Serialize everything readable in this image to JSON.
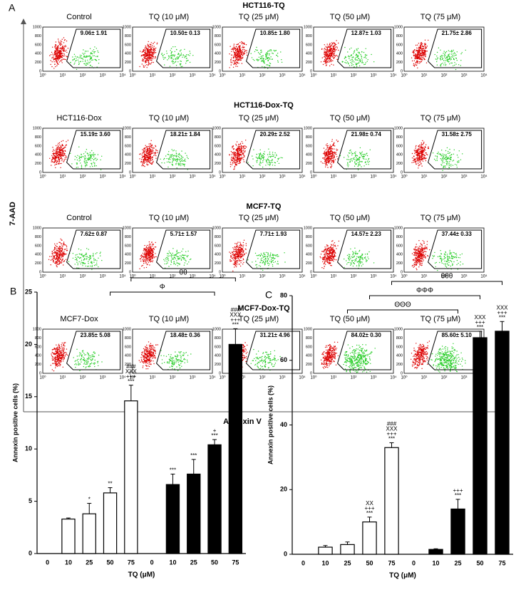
{
  "panel_label": "A",
  "flow": {
    "x_label": "Annexin V",
    "y_label": "7-AAD",
    "xtick_labels": [
      "10⁰",
      "10¹",
      "10²",
      "10³",
      "10⁴"
    ],
    "ytick_labels": [
      0,
      200,
      400,
      600,
      800,
      1000
    ],
    "groups": [
      {
        "title": "HCT116-TQ",
        "panels": [
          {
            "label": "Control",
            "value_label": "9.06± 1.91"
          },
          {
            "label": "TQ (10 μM)",
            "value_label": "10.50± 0.13"
          },
          {
            "label": "TQ (25 μM)",
            "value_label": "10.85± 1.80"
          },
          {
            "label": "TQ (50 μM)",
            "value_label": "12.87± 1.03"
          },
          {
            "label": "TQ (75 μM)",
            "value_label": "21.75± 2.86"
          }
        ]
      },
      {
        "title": "HCT116-Dox-TQ",
        "panels": [
          {
            "label": "HCT116-Dox",
            "value_label": "15.19± 3.60"
          },
          {
            "label": "TQ (10 μM)",
            "value_label": "18.21± 1.84"
          },
          {
            "label": "TQ (25 μM)",
            "value_label": "20.29± 2.52"
          },
          {
            "label": "TQ (50 μM)",
            "value_label": "21.98± 0.74"
          },
          {
            "label": "TQ (75 μM)",
            "value_label": "31.58± 2.75"
          }
        ]
      },
      {
        "title": "MCF7-TQ",
        "panels": [
          {
            "label": "Control",
            "value_label": "7.62± 0.87"
          },
          {
            "label": "TQ (10 μM)",
            "value_label": "5.71± 1.57"
          },
          {
            "label": "TQ (25 μM)",
            "value_label": "7.71± 1.93"
          },
          {
            "label": "TQ (50 μM)",
            "value_label": "14.57± 2.23"
          },
          {
            "label": "TQ (75 μM)",
            "value_label": "37.44± 0.33"
          }
        ]
      },
      {
        "title": "MCF7-Dox-TQ",
        "panels": [
          {
            "label": "MCF7-Dox",
            "value_label": "23.85± 5.08"
          },
          {
            "label": "TQ (10 μM)",
            "value_label": "18.48± 0.36"
          },
          {
            "label": "TQ (25 μM)",
            "value_label": "31.21± 4.96"
          },
          {
            "label": "TQ (50 μM)",
            "value_label": "84.02± 0.30"
          },
          {
            "label": "TQ (75 μM)",
            "value_label": "85.60± 5.10"
          }
        ]
      }
    ]
  },
  "chart_data": [
    {
      "type": "bar",
      "panel_label": "B",
      "y_label": "Annexin positive cells (%)",
      "x_label": "TQ (μM)",
      "categories": [
        "0",
        "10",
        "25",
        "50",
        "75",
        "0",
        "10",
        "25",
        "50",
        "75"
      ],
      "values": [
        0,
        3.3,
        3.8,
        5.8,
        14.6,
        0,
        6.6,
        7.6,
        10.4,
        20
      ],
      "errors": [
        0,
        0.1,
        1,
        0.5,
        1.5,
        0,
        1,
        1.4,
        0.5,
        1.5
      ],
      "colors": [
        "#ffffff",
        "#ffffff",
        "#ffffff",
        "#ffffff",
        "#ffffff",
        "#000000",
        "#000000",
        "#000000",
        "#000000",
        "#000000"
      ],
      "bar_annotations": [
        [],
        [],
        [
          "*"
        ],
        [
          "**"
        ],
        [
          "###",
          "XXX",
          "+++",
          "***"
        ],
        [],
        [
          "***"
        ],
        [
          "***"
        ],
        [
          "+",
          "***"
        ],
        [
          "###",
          "XXX",
          "+++",
          "***"
        ]
      ],
      "brackets": [
        {
          "label": "θθ",
          "from": 4,
          "to": 9
        },
        {
          "label": "Φ",
          "from": 3,
          "to": 8
        }
      ],
      "ylim": [
        0,
        25
      ],
      "yticks": [
        0,
        5,
        10,
        15,
        20,
        25
      ]
    },
    {
      "type": "bar",
      "panel_label": "C",
      "y_label": "Annexin positive cells (%)",
      "x_label": "TQ (μM)",
      "categories": [
        "0",
        "10",
        "25",
        "50",
        "75",
        "0",
        "10",
        "25",
        "50",
        "75"
      ],
      "values": [
        0,
        2.2,
        3,
        10,
        33,
        0,
        1.5,
        14,
        67,
        69
      ],
      "errors": [
        0,
        0.5,
        0.8,
        1.5,
        1.5,
        0,
        0.2,
        3,
        2,
        3
      ],
      "colors": [
        "#ffffff",
        "#ffffff",
        "#ffffff",
        "#ffffff",
        "#ffffff",
        "#000000",
        "#000000",
        "#000000",
        "#000000",
        "#000000"
      ],
      "bar_annotations": [
        [],
        [],
        [],
        [
          "XX",
          "+++",
          "***"
        ],
        [
          "###",
          "XXX",
          "+++",
          "***"
        ],
        [],
        [],
        [
          "+++",
          "***"
        ],
        [
          "XXX",
          "+++",
          "***"
        ],
        [
          "XXX",
          "+++",
          "***"
        ]
      ],
      "brackets": [
        {
          "label": "θθθ",
          "from": 4,
          "to": 9
        },
        {
          "label": "ΦΦΦ",
          "from": 3,
          "to": 8
        },
        {
          "label": "ΘΘΘ",
          "from": 2,
          "to": 7
        }
      ],
      "ylim": [
        0,
        80
      ],
      "yticks": [
        0,
        20,
        40,
        60,
        80
      ]
    }
  ]
}
